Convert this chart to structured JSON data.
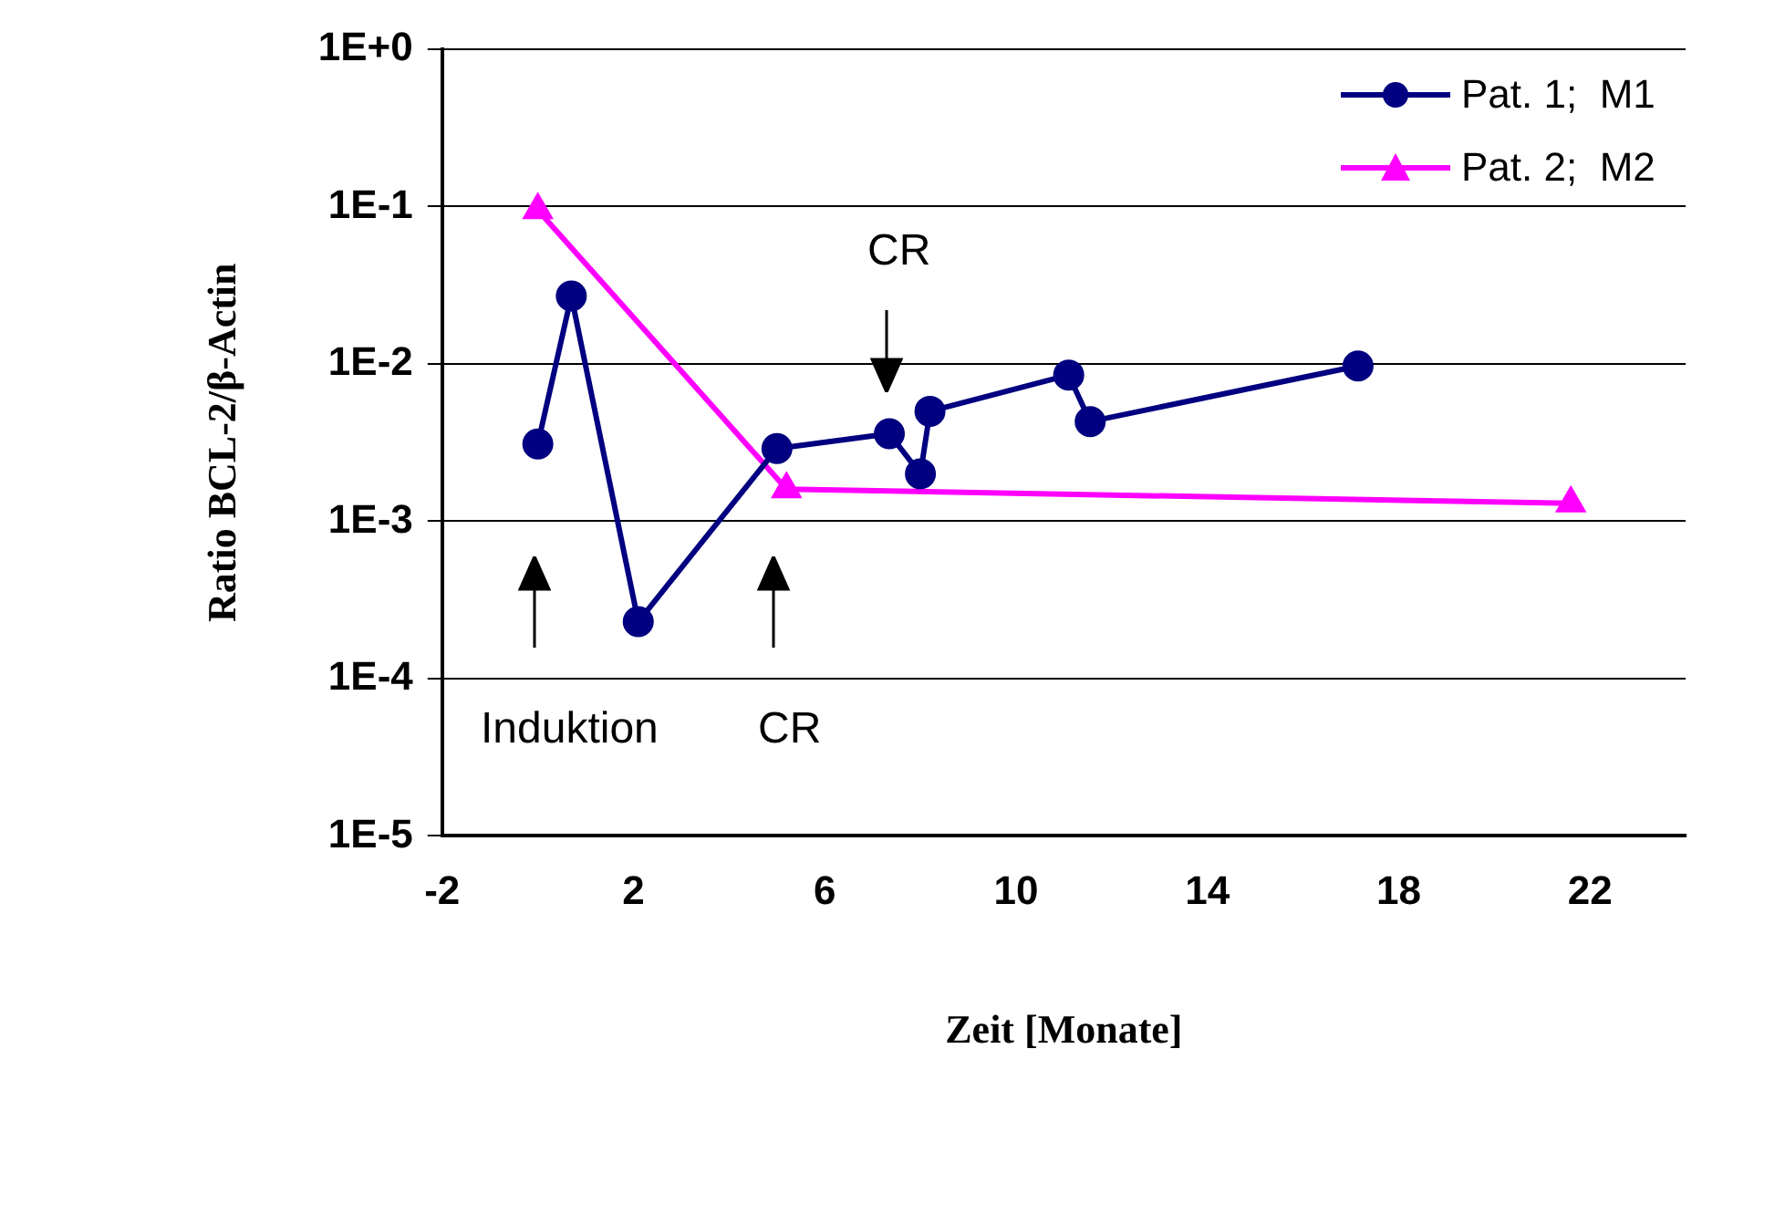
{
  "chart_data": {
    "type": "line",
    "xlabel": "Zeit [Monate]",
    "ylabel": "Ratio BCL-2/β-Actin",
    "log": "y",
    "xlim": [
      -2,
      24
    ],
    "xticks": [
      -2,
      2,
      6,
      10,
      14,
      18,
      22
    ],
    "ylim": [
      1e-05,
      1
    ],
    "yticks": [
      {
        "value": 1e-05,
        "label": "1E-5"
      },
      {
        "value": 0.0001,
        "label": "1E-4"
      },
      {
        "value": 0.001,
        "label": "1E-3"
      },
      {
        "value": 0.01,
        "label": "1E-2"
      },
      {
        "value": 0.1,
        "label": "1E-1"
      },
      {
        "value": 1,
        "label": "1E+0"
      }
    ],
    "grid": "y",
    "legend": "top right",
    "series": [
      {
        "name": "Pat. 1;  M1",
        "color": "#000080",
        "marker": "circle",
        "x": [
          0,
          0.7,
          2.1,
          5,
          7.35,
          8,
          8.2,
          11.1,
          11.55,
          17.15
        ],
        "values": [
          0.0031,
          0.027,
          0.00023,
          0.0029,
          0.0036,
          0.002,
          0.005,
          0.0085,
          0.0043,
          0.0097
        ]
      },
      {
        "name": "Pat. 2;  M2",
        "color": "#ff00ff",
        "marker": "triangle",
        "x": [
          0,
          5.2,
          21.6
        ],
        "values": [
          0.095,
          0.0016,
          0.0013
        ]
      }
    ],
    "annotations": [
      "Induktion",
      "CR",
      "CR"
    ]
  }
}
